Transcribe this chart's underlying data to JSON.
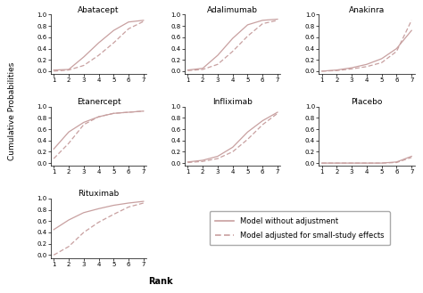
{
  "subplots": [
    {
      "title": "Abatacept",
      "solid": [
        0.02,
        0.03,
        0.25,
        0.5,
        0.72,
        0.87,
        0.9
      ],
      "dashed": [
        0.0,
        0.02,
        0.1,
        0.28,
        0.5,
        0.75,
        0.88
      ]
    },
    {
      "title": "Adalimumab",
      "solid": [
        0.02,
        0.05,
        0.28,
        0.58,
        0.82,
        0.9,
        0.92
      ],
      "dashed": [
        0.01,
        0.03,
        0.12,
        0.35,
        0.62,
        0.84,
        0.9
      ]
    },
    {
      "title": "Anakinra",
      "solid": [
        0.0,
        0.02,
        0.06,
        0.12,
        0.22,
        0.4,
        0.72
      ],
      "dashed": [
        0.0,
        0.01,
        0.04,
        0.08,
        0.15,
        0.35,
        0.9
      ]
    },
    {
      "title": "Etanercept",
      "solid": [
        0.25,
        0.55,
        0.72,
        0.82,
        0.88,
        0.9,
        0.92
      ],
      "dashed": [
        0.08,
        0.35,
        0.68,
        0.82,
        0.88,
        0.9,
        0.92
      ]
    },
    {
      "title": "Infliximab",
      "solid": [
        0.02,
        0.05,
        0.12,
        0.28,
        0.55,
        0.75,
        0.9
      ],
      "dashed": [
        0.01,
        0.03,
        0.08,
        0.2,
        0.42,
        0.68,
        0.88
      ]
    },
    {
      "title": "Placebo",
      "solid": [
        0.0,
        0.0,
        0.0,
        0.0,
        0.0,
        0.02,
        0.12
      ],
      "dashed": [
        0.0,
        0.0,
        0.0,
        0.0,
        0.0,
        0.01,
        0.1
      ]
    },
    {
      "title": "Rituximab",
      "solid": [
        0.45,
        0.62,
        0.75,
        0.82,
        0.88,
        0.92,
        0.95
      ],
      "dashed": [
        0.0,
        0.15,
        0.4,
        0.58,
        0.72,
        0.85,
        0.92
      ]
    }
  ],
  "x": [
    1,
    2,
    3,
    4,
    5,
    6,
    7
  ],
  "xlim": [
    0.8,
    7.2
  ],
  "ylim": [
    -0.05,
    1.0
  ],
  "yticks": [
    0,
    0.2,
    0.4,
    0.6,
    0.8,
    1.0
  ],
  "xticks": [
    1,
    2,
    3,
    4,
    5,
    6,
    7
  ],
  "solid_color": "#c8a0a0",
  "dashed_color": "#c8a0a0",
  "ylabel": "Cumulative Probabilities",
  "xlabel": "Rank",
  "legend_solid": "Model without adjustment",
  "legend_dashed": "Model adjusted for small-study effects",
  "bg_color": "#f5f5f5"
}
